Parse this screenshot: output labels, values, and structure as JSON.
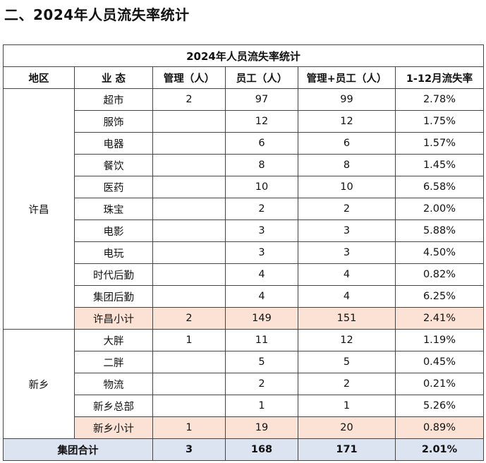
{
  "heading": "二、2024年人员流失率统计",
  "table": {
    "caption": "2024年人员流失率统计",
    "headers": [
      "地区",
      "业 态",
      "管理（人）",
      "员工（人）",
      "管理+员工（人）",
      "1-12月流失率"
    ],
    "regions": [
      {
        "name": "许昌",
        "rows": [
          [
            "超市",
            "2",
            "97",
            "99",
            "2.78%"
          ],
          [
            "服饰",
            "",
            "12",
            "12",
            "1.75%"
          ],
          [
            "电器",
            "",
            "6",
            "6",
            "1.57%"
          ],
          [
            "餐饮",
            "",
            "8",
            "8",
            "1.45%"
          ],
          [
            "医药",
            "",
            "10",
            "10",
            "6.58%"
          ],
          [
            "珠宝",
            "",
            "2",
            "2",
            "2.00%"
          ],
          [
            "电影",
            "",
            "3",
            "3",
            "5.88%"
          ],
          [
            "电玩",
            "",
            "3",
            "3",
            "4.50%"
          ],
          [
            "时代后勤",
            "",
            "4",
            "4",
            "0.82%"
          ],
          [
            "集团后勤",
            "",
            "4",
            "4",
            "6.25%"
          ]
        ],
        "subtotal": [
          "许昌小计",
          "2",
          "149",
          "151",
          "2.41%"
        ]
      },
      {
        "name": "新乡",
        "rows": [
          [
            "大胖",
            "1",
            "11",
            "12",
            "1.19%"
          ],
          [
            "二胖",
            "",
            "5",
            "5",
            "0.45%"
          ],
          [
            "物流",
            "",
            "2",
            "2",
            "0.21%"
          ],
          [
            "新乡总部",
            "",
            "1",
            "1",
            "5.26%"
          ]
        ],
        "subtotal": [
          "新乡小计",
          "1",
          "19",
          "20",
          "0.89%"
        ]
      }
    ],
    "total": [
      "集团合计",
      "3",
      "168",
      "171",
      "2.01%"
    ]
  },
  "colors": {
    "subtotal_bg": "#fbe2d5",
    "total_bg": "#dce3f1",
    "border": "#444444"
  }
}
